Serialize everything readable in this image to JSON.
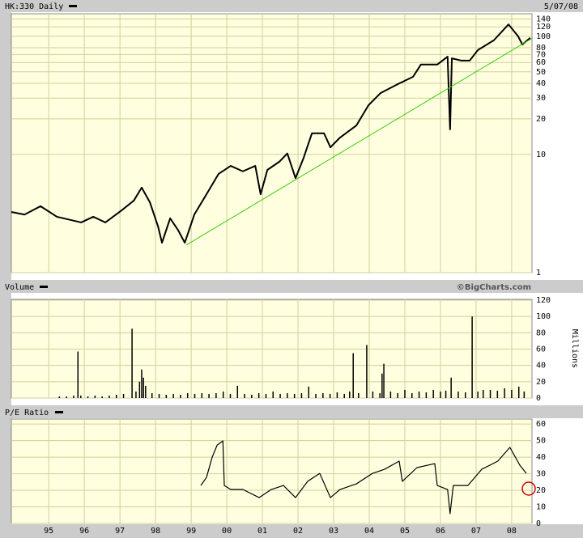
{
  "chart_data": [
    {
      "type": "line",
      "date": "5/07/08",
      "log_scale": true,
      "grid": true,
      "xlim": [
        1993.95,
        2008.57
      ],
      "ylim": [
        1,
        155
      ],
      "yticks": [
        1,
        10,
        20,
        30,
        40,
        50,
        60,
        70,
        80,
        100,
        120,
        140
      ],
      "x": [
        1993.95,
        1994.32,
        1994.77,
        1995.23,
        1995.91,
        1996.25,
        1996.59,
        1997.05,
        1997.39,
        1997.61,
        1997.84,
        1998.07,
        1998.18,
        1998.41,
        1998.64,
        1998.82,
        1999.09,
        1999.43,
        1999.77,
        2000.11,
        2000.45,
        2000.8,
        2000.95,
        2001.14,
        2001.48,
        2001.7,
        2001.93,
        2002.16,
        2002.39,
        2002.73,
        2002.91,
        2003.18,
        2003.64,
        2003.98,
        2004.32,
        2004.77,
        2005.23,
        2005.45,
        2005.91,
        2006.2,
        2006.27,
        2006.32,
        2006.59,
        2006.82,
        2007.05,
        2007.5,
        2007.91,
        2008.18,
        2008.3,
        2008.52
      ],
      "series": [
        {
          "name": "HK:330 Daily",
          "color": "#000000",
          "values": [
            3.26,
            3.1,
            3.65,
            2.97,
            2.66,
            2.97,
            2.66,
            3.37,
            4.07,
            5.24,
            3.94,
            2.46,
            1.79,
            2.88,
            2.27,
            1.79,
            3.11,
            4.6,
            6.85,
            8.0,
            7.2,
            8.0,
            4.6,
            7.4,
            8.7,
            10.2,
            6.3,
            9.4,
            15.1,
            15.1,
            11.5,
            13.9,
            17.6,
            26.1,
            33.1,
            38.9,
            45.4,
            57.6,
            57.6,
            67.2,
            16.3,
            65,
            62.2,
            62.2,
            76.4,
            92.5,
            126,
            100,
            85,
            97
          ]
        }
      ],
      "trendline": {
        "color": "#33cc00",
        "x": [
          1998.86,
          2008.57
        ],
        "values": [
          1.71,
          96
        ]
      }
    },
    {
      "type": "bar",
      "source": "©BigCharts.com",
      "y_label": "Millions",
      "grid": true,
      "xlim": [
        1993.95,
        2008.57
      ],
      "ylim": [
        0,
        121
      ],
      "yticks": [
        0,
        20,
        40,
        60,
        80,
        100,
        120
      ],
      "x": [
        1995.3,
        1995.5,
        1995.7,
        1995.82,
        1995.9,
        1996.1,
        1996.3,
        1996.5,
        1996.7,
        1996.9,
        1997.1,
        1997.34,
        1997.45,
        1997.55,
        1997.61,
        1997.66,
        1997.72,
        1997.9,
        1998.1,
        1998.3,
        1998.5,
        1998.7,
        1998.9,
        1999.1,
        1999.3,
        1999.5,
        1999.7,
        1999.9,
        2000.1,
        2000.3,
        2000.5,
        2000.7,
        2000.9,
        2001.1,
        2001.3,
        2001.5,
        2001.7,
        2001.9,
        2002.1,
        2002.3,
        2002.5,
        2002.7,
        2002.9,
        2003.1,
        2003.3,
        2003.45,
        2003.55,
        2003.7,
        2003.93,
        2004.1,
        2004.3,
        2004.36,
        2004.41,
        2004.6,
        2004.8,
        2005.0,
        2005.2,
        2005.4,
        2005.6,
        2005.8,
        2006.0,
        2006.15,
        2006.3,
        2006.5,
        2006.7,
        2006.89,
        2007.05,
        2007.2,
        2007.4,
        2007.6,
        2007.8,
        2008.0,
        2008.2,
        2008.35
      ],
      "series": [
        {
          "name": "Volume",
          "color": "#000000",
          "values": [
            2,
            2,
            3,
            57,
            3,
            2,
            3,
            2,
            3,
            4,
            5,
            85,
            8,
            20,
            35,
            25,
            15,
            6,
            5,
            4,
            5,
            4,
            6,
            5,
            6,
            5,
            6,
            8,
            5,
            15,
            5,
            4,
            6,
            5,
            8,
            5,
            6,
            5,
            6,
            14,
            5,
            6,
            5,
            7,
            5,
            8,
            55,
            6,
            65,
            8,
            6,
            30,
            42,
            8,
            6,
            10,
            6,
            8,
            7,
            10,
            8,
            9,
            25,
            8,
            7,
            100,
            8,
            10,
            10,
            9,
            12,
            10,
            14,
            8
          ]
        }
      ]
    },
    {
      "type": "line",
      "grid": true,
      "xlim": [
        1993.95,
        2008.57
      ],
      "ylim": [
        0,
        63
      ],
      "yticks": [
        0,
        10,
        20,
        30,
        40,
        50,
        60
      ],
      "xticks": [
        {
          "value": 1995,
          "label": "95"
        },
        {
          "value": 1996,
          "label": "96"
        },
        {
          "value": 1997,
          "label": "97"
        },
        {
          "value": 1998,
          "label": "98"
        },
        {
          "value": 1999,
          "label": "99"
        },
        {
          "value": 2000,
          "label": "00"
        },
        {
          "value": 2001,
          "label": "01"
        },
        {
          "value": 2002,
          "label": "02"
        },
        {
          "value": 2003,
          "label": "03"
        },
        {
          "value": 2004,
          "label": "04"
        },
        {
          "value": 2005,
          "label": "05"
        },
        {
          "value": 2006,
          "label": "06"
        },
        {
          "value": 2007,
          "label": "07"
        },
        {
          "value": 2008,
          "label": "08"
        }
      ],
      "x": [
        1999.27,
        1999.43,
        1999.59,
        1999.73,
        1999.89,
        1999.93,
        2000.11,
        2000.45,
        2000.91,
        2001.25,
        2001.59,
        2001.93,
        2002.27,
        2002.61,
        2002.91,
        2003.18,
        2003.64,
        2004.09,
        2004.43,
        2004.84,
        2004.93,
        2005.34,
        2005.84,
        2005.91,
        2006.2,
        2006.27,
        2006.36,
        2006.77,
        2007.16,
        2007.61,
        2007.95,
        2008.23,
        2008.41
      ],
      "series": [
        {
          "name": "P/E Ratio",
          "color": "#000000",
          "values": [
            22.9,
            27.8,
            40,
            47.3,
            49.8,
            22.9,
            20.5,
            20.5,
            15.6,
            20.5,
            22.9,
            15.6,
            25.4,
            30.2,
            15.6,
            20.5,
            23.9,
            30.2,
            32.7,
            37.6,
            25.4,
            33.7,
            36.1,
            22.9,
            20.5,
            5.9,
            22.9,
            22.9,
            32.7,
            37.6,
            45.9,
            35.1,
            30.2
          ]
        }
      ]
    }
  ]
}
